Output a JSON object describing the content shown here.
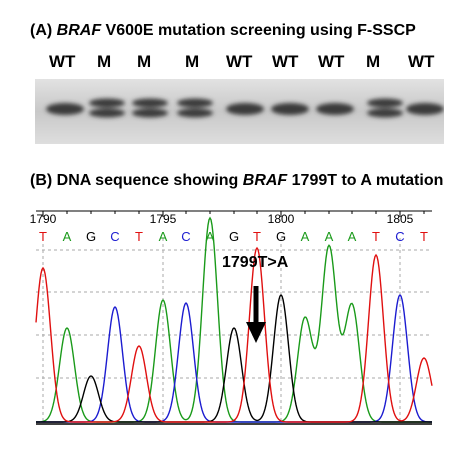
{
  "panelA": {
    "title_prefix": "(A) ",
    "title_gene": "BRAF",
    "title_rest": " V600E mutation screening using F-SSCP",
    "lanes": [
      "WT",
      "M",
      "M",
      "M",
      "WT",
      "WT",
      "WT",
      "M",
      "WT"
    ]
  },
  "panelB": {
    "title_prefix": "(B) DNA sequence showing ",
    "title_gene": "BRAF",
    "title_rest": " 1799T to A mutation",
    "positions": [
      "1790",
      "1795",
      "1800",
      "1805"
    ],
    "bases": [
      "T",
      "A",
      "G",
      "C",
      "T",
      "A",
      "C",
      "A",
      "G",
      "T",
      "G",
      "A",
      "A",
      "A",
      "T",
      "C",
      "T"
    ],
    "annotation": "1799T>A"
  },
  "colors": {
    "A": "#1a9a1a",
    "C": "#1c1cd0",
    "G": "#000000",
    "T": "#e01010",
    "gel_bg": "#d4d4d4",
    "band": "#3a3a3a"
  }
}
